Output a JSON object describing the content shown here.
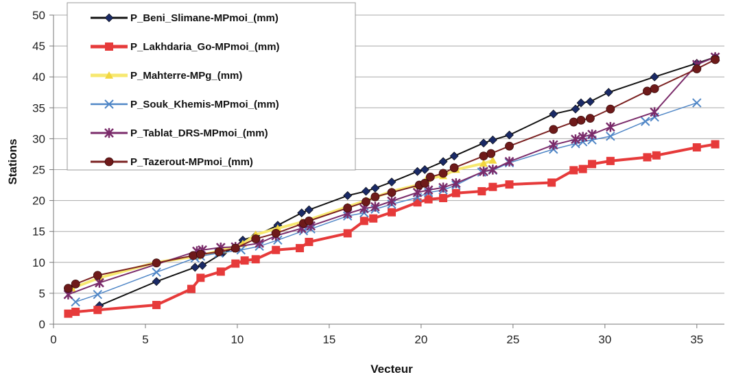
{
  "chart_data": {
    "type": "line",
    "title": "",
    "xlabel": "Vecteur",
    "ylabel": "Stations",
    "xlim": [
      0,
      36.5
    ],
    "ylim": [
      0,
      50
    ],
    "xticks": [
      0,
      5,
      10,
      15,
      20,
      25,
      30,
      35
    ],
    "yticks": [
      0,
      5,
      10,
      15,
      20,
      25,
      30,
      35,
      40,
      45,
      50
    ],
    "grid": "horizontal",
    "legend_position": "top-left",
    "series": [
      {
        "name": "P_Beni_Slimane-MPmoi_(mm)",
        "color": "#111111",
        "marker": "diamond",
        "marker_color": "#1a2a66",
        "line_width": 2,
        "points": [
          [
            2.5,
            3
          ],
          [
            5.6,
            6.9
          ],
          [
            7.7,
            9.2
          ],
          [
            8.1,
            9.5
          ],
          [
            9.2,
            11.5
          ],
          [
            9.8,
            12.3
          ],
          [
            10.3,
            13.6
          ],
          [
            11.0,
            14.3
          ],
          [
            12.2,
            16
          ],
          [
            13.5,
            18
          ],
          [
            13.9,
            18.5
          ],
          [
            16.0,
            20.8
          ],
          [
            17.0,
            21.5
          ],
          [
            17.5,
            22
          ],
          [
            18.4,
            23
          ],
          [
            19.8,
            24.7
          ],
          [
            20.2,
            25
          ],
          [
            21.2,
            26.3
          ],
          [
            21.8,
            27.2
          ],
          [
            23.4,
            29.3
          ],
          [
            23.9,
            29.8
          ],
          [
            24.8,
            30.6
          ],
          [
            27.2,
            34
          ],
          [
            28.4,
            34.8
          ],
          [
            28.7,
            35.8
          ],
          [
            29.2,
            36
          ],
          [
            30.2,
            37.5
          ],
          [
            32.7,
            40
          ],
          [
            35.0,
            42.2
          ],
          [
            36.0,
            43.2
          ]
        ]
      },
      {
        "name": "P_Lakhdaria_Go-MPmoi_(mm)",
        "color": "#e63a3a",
        "marker": "square",
        "marker_color": "#e63a3a",
        "line_width": 4,
        "points": [
          [
            0.8,
            1.7
          ],
          [
            1.2,
            2
          ],
          [
            2.4,
            2.3
          ],
          [
            5.6,
            3.1
          ],
          [
            7.5,
            5.7
          ],
          [
            8.0,
            7.5
          ],
          [
            9.1,
            8.5
          ],
          [
            9.9,
            9.8
          ],
          [
            10.4,
            10.3
          ],
          [
            11.0,
            10.5
          ],
          [
            12.1,
            12
          ],
          [
            13.4,
            12.3
          ],
          [
            13.9,
            13.3
          ],
          [
            16.0,
            14.7
          ],
          [
            16.9,
            16.7
          ],
          [
            17.4,
            17.1
          ],
          [
            18.4,
            18.1
          ],
          [
            19.8,
            19.7
          ],
          [
            20.4,
            20.2
          ],
          [
            21.2,
            20.4
          ],
          [
            21.9,
            21.2
          ],
          [
            23.3,
            21.5
          ],
          [
            23.9,
            22.2
          ],
          [
            24.8,
            22.6
          ],
          [
            27.1,
            22.9
          ],
          [
            28.3,
            24.9
          ],
          [
            28.8,
            25.1
          ],
          [
            29.3,
            25.9
          ],
          [
            30.3,
            26.4
          ],
          [
            32.3,
            27
          ],
          [
            32.8,
            27.3
          ],
          [
            35.0,
            28.6
          ],
          [
            36.0,
            29.1
          ]
        ]
      },
      {
        "name": "P_Mahterre-MPg_(mm)",
        "color": "#f7e870",
        "marker": "triangle",
        "marker_color": "#f2d640",
        "line_width": 4,
        "points": [
          [
            1.0,
            5.8
          ],
          [
            2.5,
            7.5
          ],
          [
            5.6,
            10
          ],
          [
            7.8,
            11
          ],
          [
            9.2,
            12
          ],
          [
            10.3,
            13
          ],
          [
            11.0,
            14.5
          ],
          [
            12.2,
            15.5
          ],
          [
            13.5,
            16.5
          ],
          [
            16.0,
            19
          ],
          [
            17.0,
            20
          ],
          [
            18.4,
            21.5
          ],
          [
            19.8,
            22.5
          ],
          [
            20.3,
            23.5
          ],
          [
            21.2,
            24
          ],
          [
            21.9,
            25
          ],
          [
            23.4,
            26
          ],
          [
            23.9,
            26.5
          ]
        ]
      },
      {
        "name": "P_Souk_Khemis-MPmoi_(mm)",
        "color": "#4f86c6",
        "marker": "x",
        "marker_color": "#4f86c6",
        "line_width": 1.5,
        "points": [
          [
            1.2,
            3.6
          ],
          [
            2.4,
            4.8
          ],
          [
            5.6,
            8.4
          ],
          [
            7.7,
            10.7
          ],
          [
            8.0,
            11
          ],
          [
            9.0,
            11.5
          ],
          [
            10.2,
            12
          ],
          [
            11.2,
            12.6
          ],
          [
            12.2,
            13.6
          ],
          [
            13.6,
            15.1
          ],
          [
            14.0,
            15.4
          ],
          [
            16.0,
            17.5
          ],
          [
            16.9,
            18
          ],
          [
            17.5,
            18.6
          ],
          [
            18.4,
            19.4
          ],
          [
            19.8,
            20.5
          ],
          [
            20.4,
            21.3
          ],
          [
            21.2,
            21.7
          ],
          [
            21.9,
            22.5
          ],
          [
            23.3,
            24.6
          ],
          [
            23.9,
            24.9
          ],
          [
            24.8,
            26.1
          ],
          [
            27.2,
            28.3
          ],
          [
            28.4,
            29.2
          ],
          [
            28.8,
            29.5
          ],
          [
            29.3,
            29.8
          ],
          [
            30.3,
            30.4
          ],
          [
            32.2,
            32.8
          ],
          [
            32.7,
            33.5
          ],
          [
            35.0,
            35.8
          ]
        ]
      },
      {
        "name": "P_Tablat_DRS-MPmoi_(mm)",
        "color": "#7a2b6a",
        "marker": "star",
        "marker_color": "#7a2b6a",
        "line_width": 2,
        "points": [
          [
            0.8,
            4.8
          ],
          [
            2.5,
            6.7
          ],
          [
            7.8,
            11.8
          ],
          [
            8.1,
            12
          ],
          [
            9.1,
            12.4
          ],
          [
            9.9,
            12.5
          ],
          [
            11.2,
            13.1
          ],
          [
            12.1,
            14.3
          ],
          [
            13.5,
            15.5
          ],
          [
            14.0,
            15.9
          ],
          [
            16.0,
            17.9
          ],
          [
            16.9,
            18.7
          ],
          [
            17.5,
            19
          ],
          [
            18.4,
            19.9
          ],
          [
            19.8,
            21.3
          ],
          [
            20.4,
            21.7
          ],
          [
            21.2,
            22.1
          ],
          [
            21.9,
            22.8
          ],
          [
            23.4,
            24.7
          ],
          [
            23.9,
            25
          ],
          [
            24.8,
            26.3
          ],
          [
            27.2,
            29
          ],
          [
            28.4,
            29.9
          ],
          [
            28.8,
            30.3
          ],
          [
            29.3,
            30.7
          ],
          [
            30.3,
            31.9
          ],
          [
            32.7,
            34.3
          ],
          [
            35.0,
            42
          ],
          [
            36.0,
            43.2
          ]
        ]
      },
      {
        "name": "P_Tazerout-MPmoi_(mm)",
        "color": "#7a2020",
        "marker": "circle",
        "marker_color": "#6e1a1a",
        "line_width": 2,
        "points": [
          [
            0.8,
            5.8
          ],
          [
            1.2,
            6.5
          ],
          [
            2.4,
            7.9
          ],
          [
            5.6,
            9.9
          ],
          [
            7.6,
            11.1
          ],
          [
            8.0,
            11.3
          ],
          [
            9.0,
            11.7
          ],
          [
            9.9,
            12.3
          ],
          [
            11.0,
            13.8
          ],
          [
            12.1,
            14.7
          ],
          [
            13.6,
            16.3
          ],
          [
            13.9,
            16.7
          ],
          [
            16.0,
            18.8
          ],
          [
            17.0,
            19.8
          ],
          [
            17.5,
            20.6
          ],
          [
            18.4,
            21.3
          ],
          [
            19.9,
            22.5
          ],
          [
            20.2,
            22.8
          ],
          [
            20.5,
            23.8
          ],
          [
            21.2,
            24.4
          ],
          [
            21.8,
            25.3
          ],
          [
            23.4,
            27.2
          ],
          [
            23.8,
            27.6
          ],
          [
            24.8,
            28.8
          ],
          [
            27.2,
            31.5
          ],
          [
            28.3,
            32.7
          ],
          [
            28.7,
            33
          ],
          [
            29.2,
            33.3
          ],
          [
            30.3,
            34.8
          ],
          [
            32.3,
            37.7
          ],
          [
            32.7,
            38.1
          ],
          [
            35.0,
            41.3
          ],
          [
            36.0,
            42.8
          ]
        ]
      }
    ]
  }
}
